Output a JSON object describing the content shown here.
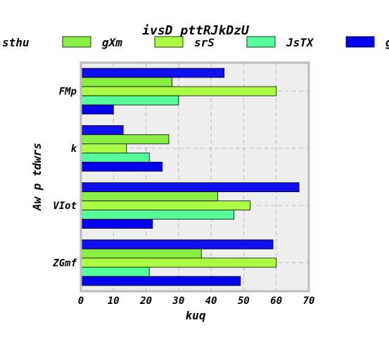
{
  "chart_data": {
    "type": "bar",
    "orientation": "horizontal",
    "title": "ivsD pttRJkDzU",
    "xlabel": "kuq",
    "ylabel": "Aw p tdwrs",
    "categories": [
      "FMp",
      "k",
      "VIot",
      "ZGmf"
    ],
    "xlim": [
      0,
      70
    ],
    "xticks": [
      0,
      10,
      20,
      30,
      40,
      50,
      60,
      70
    ],
    "grid": true,
    "legend_position": "top",
    "plot_background": "#eeeeee",
    "series": [
      {
        "name": "",
        "legend_label": "sthu",
        "color": "#1010ee",
        "values": [
          44,
          13,
          67,
          59
        ]
      },
      {
        "name": "gXm",
        "color": "#88ee44",
        "values": [
          28,
          27,
          42,
          37
        ]
      },
      {
        "name": "srS",
        "color": "#aaff44",
        "values": [
          60,
          14,
          52,
          60
        ]
      },
      {
        "name": "JsTX",
        "color": "#55ff99",
        "values": [
          30,
          21,
          47,
          21
        ]
      },
      {
        "name": "g",
        "color": "#0000ee",
        "values": [
          10,
          25,
          22,
          49
        ]
      }
    ]
  }
}
